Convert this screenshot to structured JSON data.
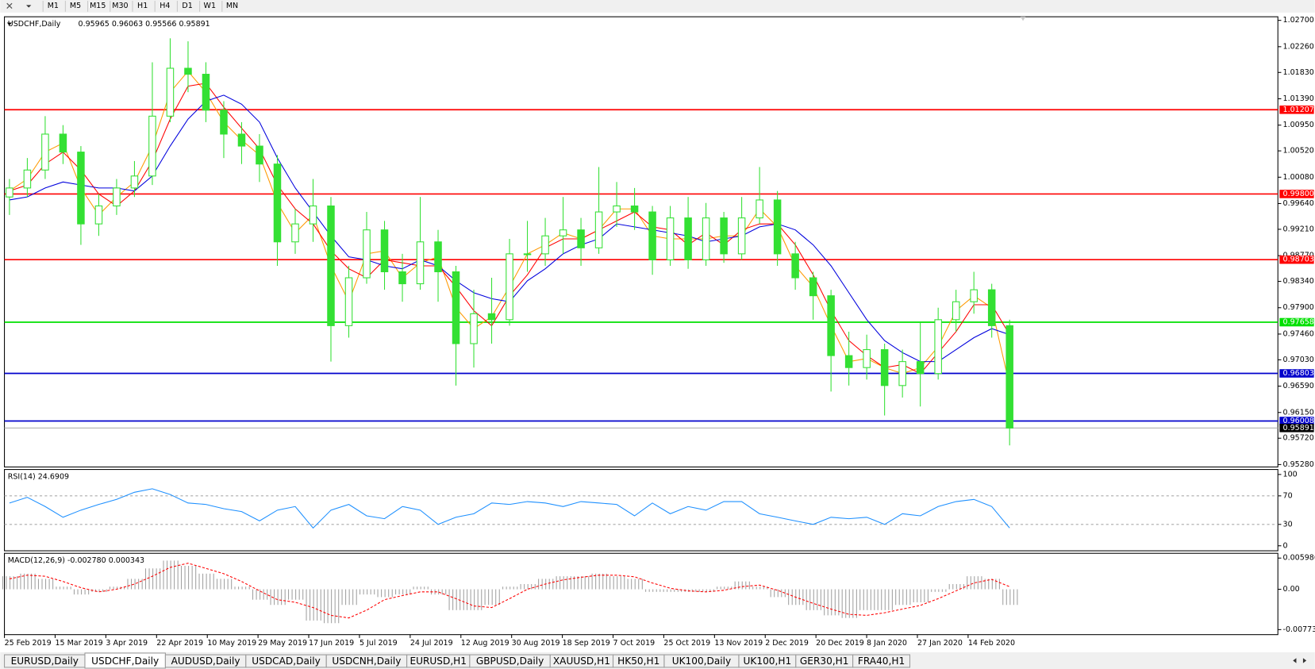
{
  "toolbar": {
    "timeframes": [
      "M1",
      "M5",
      "M15",
      "M30",
      "H1",
      "H4",
      "D1",
      "W1",
      "MN"
    ]
  },
  "chart_data": [
    {
      "type": "candlestick",
      "title": "USDCHF,Daily",
      "ohlc_label": "0.95965 0.96063 0.95566 0.95891",
      "color": "#33e033",
      "x_labels": [
        "25 Feb 2019",
        "15 Mar 2019",
        "3 Apr 2019",
        "22 Apr 2019",
        "10 May 2019",
        "29 May 2019",
        "17 Jun 2019",
        "5 Jul 2019",
        "24 Jul 2019",
        "12 Aug 2019",
        "30 Aug 2019",
        "18 Sep 2019",
        "7 Oct 2019",
        "25 Oct 2019",
        "13 Nov 2019",
        "2 Dec 2019",
        "20 Dec 2019",
        "8 Jan 2020",
        "27 Jan 2020",
        "14 Feb 2020"
      ],
      "candles": [
        [
          0.9975,
          1.0005,
          0.9945,
          0.999
        ],
        [
          0.999,
          1.004,
          0.9975,
          1.002
        ],
        [
          1.002,
          1.011,
          1.0005,
          1.008
        ],
        [
          1.008,
          1.0095,
          1.003,
          1.005
        ],
        [
          1.005,
          1.006,
          0.9895,
          0.993
        ],
        [
          0.993,
          0.998,
          0.991,
          0.996
        ],
        [
          0.996,
          1.0005,
          0.9945,
          0.999
        ],
        [
          0.999,
          1.0035,
          0.9975,
          1.001
        ],
        [
          1.001,
          1.02,
          0.9995,
          1.011
        ],
        [
          1.011,
          1.024,
          1.01,
          1.019
        ],
        [
          1.019,
          1.0235,
          1.015,
          1.018
        ],
        [
          1.018,
          1.02,
          1.01,
          1.012
        ],
        [
          1.012,
          1.0135,
          1.004,
          1.008
        ],
        [
          1.008,
          1.01,
          1.003,
          1.006
        ],
        [
          1.006,
          1.008,
          1.0,
          1.003
        ],
        [
          1.003,
          1.0045,
          0.986,
          0.99
        ],
        [
          0.99,
          0.9955,
          0.988,
          0.993
        ],
        [
          0.993,
          1.0005,
          0.99,
          0.996
        ],
        [
          0.996,
          0.9975,
          0.97,
          0.976
        ],
        [
          0.976,
          0.986,
          0.974,
          0.984
        ],
        [
          0.984,
          0.995,
          0.983,
          0.992
        ],
        [
          0.992,
          0.9935,
          0.982,
          0.985
        ],
        [
          0.985,
          0.988,
          0.98,
          0.983
        ],
        [
          0.983,
          0.9975,
          0.982,
          0.99
        ],
        [
          0.99,
          0.992,
          0.98,
          0.985
        ],
        [
          0.985,
          0.986,
          0.966,
          0.973
        ],
        [
          0.973,
          0.982,
          0.969,
          0.978
        ],
        [
          0.978,
          0.984,
          0.973,
          0.977
        ],
        [
          0.977,
          0.9905,
          0.976,
          0.988
        ],
        [
          0.988,
          0.9935,
          0.985,
          0.988
        ],
        [
          0.988,
          0.994,
          0.986,
          0.991
        ],
        [
          0.991,
          0.9975,
          0.988,
          0.992
        ],
        [
          0.992,
          0.994,
          0.986,
          0.989
        ],
        [
          0.989,
          1.0025,
          0.988,
          0.995
        ],
        [
          0.995,
          1.0,
          0.9925,
          0.996
        ],
        [
          0.996,
          0.999,
          0.992,
          0.995
        ],
        [
          0.995,
          0.996,
          0.9845,
          0.987
        ],
        [
          0.987,
          0.996,
          0.986,
          0.994
        ],
        [
          0.994,
          0.9975,
          0.9855,
          0.987
        ],
        [
          0.987,
          0.9965,
          0.986,
          0.994
        ],
        [
          0.994,
          0.995,
          0.9865,
          0.988
        ],
        [
          0.988,
          0.9975,
          0.987,
          0.994
        ],
        [
          0.994,
          1.0025,
          0.993,
          0.997
        ],
        [
          0.997,
          0.9985,
          0.986,
          0.988
        ],
        [
          0.988,
          0.99,
          0.982,
          0.984
        ],
        [
          0.984,
          0.985,
          0.977,
          0.981
        ],
        [
          0.981,
          0.982,
          0.965,
          0.971
        ],
        [
          0.971,
          0.975,
          0.966,
          0.969
        ],
        [
          0.969,
          0.9745,
          0.967,
          0.972
        ],
        [
          0.972,
          0.973,
          0.961,
          0.966
        ],
        [
          0.966,
          0.972,
          0.964,
          0.97
        ],
        [
          0.97,
          0.9765,
          0.9625,
          0.968
        ],
        [
          0.968,
          0.979,
          0.967,
          0.977
        ],
        [
          0.977,
          0.982,
          0.975,
          0.98
        ],
        [
          0.98,
          0.985,
          0.978,
          0.982
        ],
        [
          0.982,
          0.983,
          0.974,
          0.976
        ],
        [
          0.976,
          0.977,
          0.956,
          0.9589
        ]
      ],
      "series": [
        {
          "color": "#ff9900",
          "values": [
            0.9985,
            1.0005,
            1.005,
            1.0065,
            0.999,
            0.9945,
            0.9975,
            1.0,
            1.006,
            1.015,
            1.0185,
            1.015,
            1.01,
            1.007,
            1.0045,
            0.9965,
            0.9915,
            0.9945,
            0.986,
            0.98,
            0.988,
            0.9885,
            0.984,
            0.9865,
            0.9875,
            0.979,
            0.9755,
            0.9775,
            0.9825,
            0.988,
            0.9895,
            0.9915,
            0.9905,
            0.992,
            0.9955,
            0.9955,
            0.991,
            0.9905,
            0.9905,
            0.9905,
            0.991,
            0.991,
            0.9955,
            0.9925,
            0.986,
            0.9825,
            0.976,
            0.97,
            0.9705,
            0.969,
            0.968,
            0.969,
            0.9725,
            0.9785,
            0.981,
            0.979,
            0.966
          ]
        },
        {
          "color": "#ff0000",
          "values": [
            0.9985,
            0.9995,
            1.003,
            1.005,
            1.002,
            0.998,
            0.996,
            0.9985,
            1.0035,
            1.0105,
            1.016,
            1.0165,
            1.0125,
            1.009,
            1.0055,
            0.9995,
            0.9955,
            0.993,
            0.9885,
            0.9855,
            0.984,
            0.987,
            0.9865,
            0.986,
            0.986,
            0.9825,
            0.9785,
            0.976,
            0.981,
            0.9845,
            0.989,
            0.9905,
            0.9905,
            0.992,
            0.9935,
            0.995,
            0.9925,
            0.992,
            0.9895,
            0.9915,
            0.9895,
            0.992,
            0.993,
            0.993,
            0.9895,
            0.9845,
            0.9785,
            0.9735,
            0.971,
            0.969,
            0.9695,
            0.968,
            0.9715,
            0.975,
            0.9795,
            0.9795,
            0.9745
          ]
        },
        {
          "color": "#0000dd",
          "values": [
            0.997,
            0.9975,
            0.999,
            1.0,
            0.9995,
            0.999,
            0.999,
            0.9985,
            1.001,
            1.006,
            1.0105,
            1.0135,
            1.0145,
            1.013,
            1.01,
            1.004,
            0.999,
            0.995,
            0.991,
            0.9875,
            0.987,
            0.986,
            0.9855,
            0.987,
            0.986,
            0.9835,
            0.9815,
            0.9805,
            0.98,
            0.9835,
            0.9855,
            0.988,
            0.9895,
            0.9905,
            0.993,
            0.9925,
            0.992,
            0.9915,
            0.991,
            0.99,
            0.9905,
            0.991,
            0.9925,
            0.993,
            0.992,
            0.9895,
            0.986,
            0.9815,
            0.977,
            0.9735,
            0.9715,
            0.97,
            0.97,
            0.972,
            0.974,
            0.9755,
            0.9745
          ]
        }
      ],
      "levels": [
        {
          "value": 1.01207,
          "label": "1.01207",
          "color": "#ff0000"
        },
        {
          "value": 0.998,
          "label": "0.99800",
          "color": "#ff0000"
        },
        {
          "value": 0.98703,
          "label": "0.98703",
          "color": "#ff0000"
        },
        {
          "value": 0.97658,
          "label": "0.97658",
          "color": "#00e000"
        },
        {
          "value": 0.96803,
          "label": "0.96803",
          "color": "#0000cc"
        },
        {
          "value": 0.96008,
          "label": "0.96008",
          "color": "#0000cc"
        },
        {
          "value": 0.95891,
          "label": "0.95891",
          "color": "#000000"
        }
      ],
      "ylim": [
        0.9524,
        1.0276
      ],
      "yticks": [
        {
          "value": 1.027,
          "label": "1.02700"
        },
        {
          "value": 1.0226,
          "label": "1.02260"
        },
        {
          "value": 1.0183,
          "label": "1.01830"
        },
        {
          "value": 1.0139,
          "label": "1.01390"
        },
        {
          "value": 1.0095,
          "label": "1.00950"
        },
        {
          "value": 1.0052,
          "label": "1.00520"
        },
        {
          "value": 1.0008,
          "label": "1.00080"
        },
        {
          "value": 0.9964,
          "label": "0.99640"
        },
        {
          "value": 0.9921,
          "label": "0.99210"
        },
        {
          "value": 0.9877,
          "label": "0.98770"
        },
        {
          "value": 0.9834,
          "label": "0.98340"
        },
        {
          "value": 0.979,
          "label": "0.97900"
        },
        {
          "value": 0.9746,
          "label": "0.97460"
        },
        {
          "value": 0.9703,
          "label": "0.97030"
        },
        {
          "value": 0.9659,
          "label": "0.96590"
        },
        {
          "value": 0.9615,
          "label": "0.96150"
        },
        {
          "value": 0.9572,
          "label": "0.95720"
        },
        {
          "value": 0.9528,
          "label": "0.95280"
        }
      ]
    },
    {
      "type": "line",
      "title": "RSI(14) 24.6909",
      "color": "#1e90ff",
      "values": [
        60,
        68,
        55,
        40,
        50,
        58,
        65,
        75,
        80,
        72,
        60,
        58,
        52,
        48,
        35,
        50,
        55,
        25,
        50,
        58,
        42,
        38,
        55,
        50,
        30,
        40,
        45,
        60,
        58,
        62,
        60,
        55,
        62,
        60,
        58,
        42,
        60,
        45,
        55,
        50,
        62,
        62,
        45,
        40,
        35,
        30,
        40,
        38,
        40,
        30,
        45,
        42,
        55,
        62,
        65,
        55,
        25
      ],
      "ylim": [
        -7,
        107
      ],
      "yticks": [
        100,
        70,
        30,
        0
      ],
      "dashed_levels": [
        70,
        30
      ]
    },
    {
      "type": "macd",
      "title": "MACD(12,26,9) -0.002780 0.000343",
      "color": "#a0a0a0",
      "signal_color": "#ff0000",
      "histogram": [
        0.0025,
        0.003,
        0.002,
        0.0005,
        -0.001,
        -0.0005,
        0.0005,
        0.002,
        0.004,
        0.0055,
        0.0045,
        0.003,
        0.002,
        0.0005,
        -0.002,
        -0.003,
        -0.002,
        -0.006,
        -0.0065,
        -0.003,
        -0.001,
        -0.0015,
        -0.001,
        0.0005,
        -0.001,
        -0.004,
        -0.004,
        -0.003,
        0.0005,
        0.001,
        0.002,
        0.0025,
        0.0025,
        0.003,
        0.0025,
        0.002,
        -0.0005,
        -0.0005,
        -0.0005,
        -0.0005,
        0.0005,
        0.0015,
        0.0005,
        -0.0015,
        -0.003,
        -0.004,
        -0.005,
        -0.0055,
        -0.004,
        -0.004,
        -0.003,
        -0.0025,
        -0.0005,
        0.001,
        0.0025,
        0.002,
        -0.003
      ],
      "signal": [
        0.002,
        0.0027,
        0.0025,
        0.0015,
        0.0003,
        -0.0005,
        0,
        0.001,
        0.0025,
        0.0042,
        0.005,
        0.004,
        0.003,
        0.0015,
        -0.0003,
        -0.002,
        -0.0025,
        -0.0035,
        -0.005,
        -0.0055,
        -0.004,
        -0.002,
        -0.0012,
        -0.0005,
        -0.0005,
        -0.0018,
        -0.0032,
        -0.0035,
        -0.0018,
        0,
        0.001,
        0.0018,
        0.0023,
        0.0027,
        0.0027,
        0.0024,
        0.0012,
        0.0002,
        -0.0003,
        -0.0005,
        -0.0002,
        0.0005,
        0.0008,
        -0.0002,
        -0.0015,
        -0.0027,
        -0.0038,
        -0.0048,
        -0.005,
        -0.0045,
        -0.0038,
        -0.0031,
        -0.0018,
        -0.0003,
        0.0012,
        0.0019,
        0.0005
      ],
      "ylim": [
        -0.0087,
        0.0069
      ],
      "yticks": [
        0.005986,
        {
          "value": 0,
          "label": "0.00"
        },
        -0.007737
      ]
    }
  ],
  "tabs": [
    "EURUSD,Daily",
    "USDCHF,Daily",
    "AUDUSD,Daily",
    "USDCAD,Daily",
    "USDCNH,Daily",
    "EURUSD,H1",
    "GBPUSD,Daily",
    "XAUUSD,H1",
    "HK50,H1",
    "UK100,Daily",
    "UK100,H1",
    "GER30,H1",
    "FRA40,H1"
  ],
  "active_tab": 1
}
